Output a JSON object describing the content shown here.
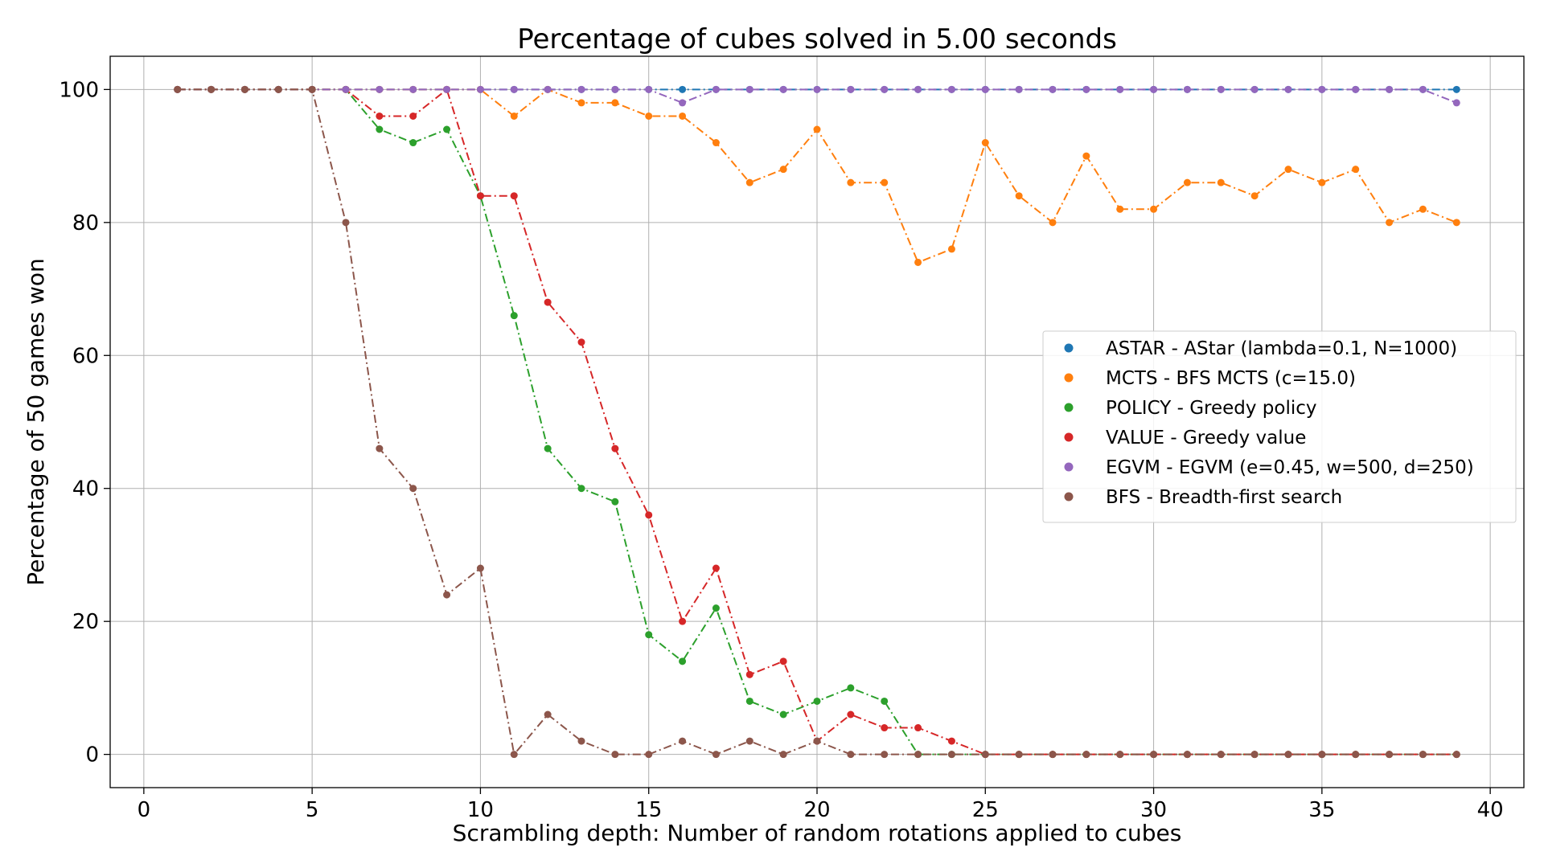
{
  "chart_data": {
    "type": "line",
    "title": "Percentage of cubes solved in 5.00 seconds",
    "xlabel": "Scrambling depth: Number of random rotations applied to cubes",
    "ylabel": "Percentage of 50 games won",
    "xlim": [
      -1,
      41
    ],
    "ylim": [
      -5,
      105
    ],
    "xticks": [
      0,
      5,
      10,
      15,
      20,
      25,
      30,
      35,
      40
    ],
    "yticks": [
      0,
      20,
      40,
      60,
      80,
      100
    ],
    "grid": true,
    "legend_position": "center-right",
    "x": [
      1,
      2,
      3,
      4,
      5,
      6,
      7,
      8,
      9,
      10,
      11,
      12,
      13,
      14,
      15,
      16,
      17,
      18,
      19,
      20,
      21,
      22,
      23,
      24,
      25,
      26,
      27,
      28,
      29,
      30,
      31,
      32,
      33,
      34,
      35,
      36,
      37,
      38,
      39
    ],
    "series": [
      {
        "name": "ASTAR - AStar (lambda=0.1, N=1000)",
        "color": "#1f77b4",
        "values": [
          100,
          100,
          100,
          100,
          100,
          100,
          100,
          100,
          100,
          100,
          100,
          100,
          100,
          100,
          100,
          100,
          100,
          100,
          100,
          100,
          100,
          100,
          100,
          100,
          100,
          100,
          100,
          100,
          100,
          100,
          100,
          100,
          100,
          100,
          100,
          100,
          100,
          100,
          100
        ]
      },
      {
        "name": "MCTS - BFS MCTS (c=15.0)",
        "color": "#ff7f0e",
        "values": [
          100,
          100,
          100,
          100,
          100,
          100,
          100,
          100,
          100,
          100,
          96,
          100,
          98,
          98,
          96,
          96,
          92,
          86,
          88,
          94,
          86,
          86,
          74,
          76,
          92,
          84,
          80,
          90,
          82,
          82,
          86,
          86,
          84,
          88,
          86,
          88,
          80,
          82,
          80
        ]
      },
      {
        "name": "POLICY - Greedy policy",
        "color": "#2ca02c",
        "values": [
          100,
          100,
          100,
          100,
          100,
          100,
          94,
          92,
          94,
          84,
          66,
          46,
          40,
          38,
          18,
          14,
          22,
          8,
          6,
          8,
          10,
          8,
          0,
          0,
          0,
          0,
          0,
          0,
          0,
          0,
          0,
          0,
          0,
          0,
          0,
          0,
          0,
          0,
          0
        ]
      },
      {
        "name": "VALUE - Greedy value",
        "color": "#d62728",
        "values": [
          100,
          100,
          100,
          100,
          100,
          100,
          96,
          96,
          100,
          84,
          84,
          68,
          62,
          46,
          36,
          20,
          28,
          12,
          14,
          2,
          6,
          4,
          4,
          2,
          0,
          0,
          0,
          0,
          0,
          0,
          0,
          0,
          0,
          0,
          0,
          0,
          0,
          0,
          0
        ]
      },
      {
        "name": "EGVM - EGVM (e=0.45, w=500, d=250)",
        "color": "#9467bd",
        "values": [
          100,
          100,
          100,
          100,
          100,
          100,
          100,
          100,
          100,
          100,
          100,
          100,
          100,
          100,
          100,
          98,
          100,
          100,
          100,
          100,
          100,
          100,
          100,
          100,
          100,
          100,
          100,
          100,
          100,
          100,
          100,
          100,
          100,
          100,
          100,
          100,
          100,
          100,
          98
        ]
      },
      {
        "name": "BFS - Breadth-first search",
        "color": "#8c564b",
        "values": [
          100,
          100,
          100,
          100,
          100,
          80,
          46,
          40,
          24,
          28,
          0,
          6,
          2,
          0,
          0,
          2,
          0,
          2,
          0,
          2,
          0,
          0,
          0,
          0,
          0,
          0,
          0,
          0,
          0,
          0,
          0,
          0,
          0,
          0,
          0,
          0,
          0,
          0,
          0
        ]
      }
    ]
  }
}
